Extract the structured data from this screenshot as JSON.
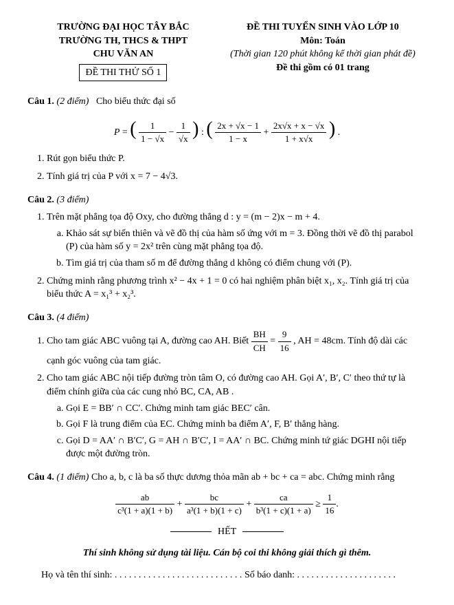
{
  "header": {
    "left": {
      "line1": "TRƯỜNG ĐẠI HỌC TÂY BẮC",
      "line2": "TRƯỜNG TH, THCS & THPT",
      "line3": "CHU VĂN AN",
      "box": "ĐỀ THI THỬ SỐ 1"
    },
    "right": {
      "line1": "ĐỀ THI TUYỂN SINH VÀO LỚP 10",
      "line2": "Môn: Toán",
      "line3": "(Thời gian 120 phút không kể thời gian phát đề)",
      "line4": "Đề thi gồm có 01 trang"
    }
  },
  "cau1": {
    "title": "Câu 1.",
    "pts": "(2 điểm)",
    "intro": "Cho biểu thức đại số",
    "item1": "Rút gọn biểu thức P.",
    "item2": "Tính giá trị của P với x = 7 − 4√3."
  },
  "cau2": {
    "title": "Câu 2.",
    "pts": "(3 điểm)",
    "item1": "Trên mặt phẳng tọa độ Oxy, cho đường thẳng d : y = (m − 2)x − m + 4.",
    "item1a": "Khảo sát sự biến thiên và vẽ đồ thị của hàm số ứng với m = 3. Đồng thời vẽ đồ thị parabol (P) của hàm số y = 2x² trên cùng mặt phẳng tọa độ.",
    "item1b": "Tìm giá trị của tham số m để đường thẳng d không có điểm chung với (P).",
    "item2": "Chứng minh rằng phương trình x² − 4x + 1 = 0 có hai nghiệm phân biệt x₁, x₂. Tính giá trị của biểu thức A = x₁³ + x₂³."
  },
  "cau3": {
    "title": "Câu 3.",
    "pts": "(4 điểm)",
    "item1a": "Cho tam giác ABC vuông tại A, đường cao AH. Biết ",
    "item1b": ", AH = 48cm. Tính độ dài các cạnh góc vuông của tam giác.",
    "item2": "Cho tam giác ABC nội tiếp đường tròn tâm O, có đường cao AH. Gọi A′, B′, C′ theo thứ tự là điểm chính giữa của các cung nhỏ BC, CA, AB .",
    "item2a": "Gọi E = BB′ ∩ CC′. Chứng minh tam giác BEC′ cân.",
    "item2b": "Gọi F là trung điểm của EC. Chứng minh ba điểm A′, F, B′ thẳng hàng.",
    "item2c": "Gọi D = AA′ ∩ B′C′, G = AH ∩ B′C′, I = AA′ ∩ BC. Chứng minh tứ giác DGHI nội tiếp được một đường tròn."
  },
  "cau4": {
    "title": "Câu 4.",
    "pts": "(1 điểm)",
    "text": "Cho a, b, c là ba số thực dương thỏa mãn ab + bc + ca = abc. Chứng minh rằng"
  },
  "footer": {
    "end": "HẾT",
    "note": "Thí sinh không sử dụng tài liệu. Cán bộ coi thi không giải thích gì thêm.",
    "name": "Họ và tên thí sinh: . . . . . . . . . . . . . . . . . . . . . . . . . . .",
    "sbd": "Số báo danh: . . . . . . . . . . . . . . . . . . . . ."
  },
  "frac": {
    "bh": "BH",
    "ch": "CH",
    "nine": "9",
    "sixteen": "16",
    "p1n": "1",
    "p1d": "1 − √x",
    "p2n": "1",
    "p2d": "√x",
    "p3n": "2x + √x − 1",
    "p3d": "1 − x",
    "p4n": "2x√x + x − √x",
    "p4d": "1 + x√x",
    "q1n": "ab",
    "q1d": "c³(1 + a)(1 + b)",
    "q2n": "bc",
    "q2d": "a³(1 + b)(1 + c)",
    "q3n": "ca",
    "q3d": "b³(1 + c)(1 + a)",
    "q4n": "1",
    "q4d": "16"
  }
}
